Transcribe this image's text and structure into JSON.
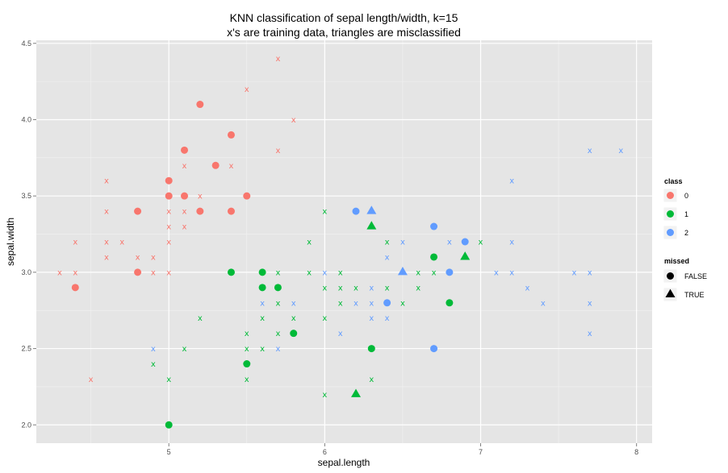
{
  "chart_data": {
    "type": "scatter",
    "title": "KNN classification of sepal length/width, k=15",
    "subtitle": "x's are training data, triangles are misclassified",
    "xlabel": "sepal.length",
    "ylabel": "sepal.width",
    "xlim": [
      4.15,
      8.1
    ],
    "ylim": [
      1.88,
      4.52
    ],
    "xticks": [
      5,
      6,
      7,
      8
    ],
    "yticks": [
      2.0,
      2.5,
      3.0,
      3.5,
      4.0,
      4.5
    ],
    "xtick_labels": [
      "5",
      "6",
      "7",
      "8"
    ],
    "ytick_labels": [
      "2.0",
      "2.5",
      "3.0",
      "3.5",
      "4.0",
      "4.5"
    ],
    "grid": true,
    "legend_position": "right",
    "class_legend": {
      "title": "class",
      "entries": [
        {
          "label": "0",
          "color": "#F8766D"
        },
        {
          "label": "1",
          "color": "#00BA38"
        },
        {
          "label": "2",
          "color": "#619CFF"
        }
      ]
    },
    "missed_legend": {
      "title": "missed",
      "entries": [
        {
          "label": "FALSE",
          "shape": "circle"
        },
        {
          "label": "TRUE",
          "shape": "triangle"
        }
      ]
    },
    "training": [
      {
        "x": 4.3,
        "y": 3.0,
        "class": 0
      },
      {
        "x": 4.4,
        "y": 3.2,
        "class": 0
      },
      {
        "x": 4.4,
        "y": 3.0,
        "class": 0
      },
      {
        "x": 4.5,
        "y": 2.3,
        "class": 0
      },
      {
        "x": 4.6,
        "y": 3.6,
        "class": 0
      },
      {
        "x": 4.6,
        "y": 3.4,
        "class": 0
      },
      {
        "x": 4.6,
        "y": 3.2,
        "class": 0
      },
      {
        "x": 4.6,
        "y": 3.1,
        "class": 0
      },
      {
        "x": 4.7,
        "y": 3.2,
        "class": 0
      },
      {
        "x": 4.8,
        "y": 3.1,
        "class": 0
      },
      {
        "x": 4.9,
        "y": 3.1,
        "class": 0
      },
      {
        "x": 4.9,
        "y": 3.0,
        "class": 0
      },
      {
        "x": 5.0,
        "y": 3.4,
        "class": 0
      },
      {
        "x": 5.0,
        "y": 3.3,
        "class": 0
      },
      {
        "x": 5.0,
        "y": 3.2,
        "class": 0
      },
      {
        "x": 5.0,
        "y": 3.0,
        "class": 0
      },
      {
        "x": 5.1,
        "y": 3.7,
        "class": 0
      },
      {
        "x": 5.1,
        "y": 3.4,
        "class": 0
      },
      {
        "x": 5.1,
        "y": 3.3,
        "class": 0
      },
      {
        "x": 5.2,
        "y": 3.5,
        "class": 0
      },
      {
        "x": 5.4,
        "y": 3.7,
        "class": 0
      },
      {
        "x": 5.5,
        "y": 4.2,
        "class": 0
      },
      {
        "x": 5.7,
        "y": 4.4,
        "class": 0
      },
      {
        "x": 5.7,
        "y": 3.8,
        "class": 0
      },
      {
        "x": 5.8,
        "y": 4.0,
        "class": 0
      },
      {
        "x": 4.9,
        "y": 2.4,
        "class": 1
      },
      {
        "x": 5.0,
        "y": 2.3,
        "class": 1
      },
      {
        "x": 5.1,
        "y": 2.5,
        "class": 1
      },
      {
        "x": 5.2,
        "y": 2.7,
        "class": 1
      },
      {
        "x": 5.5,
        "y": 2.6,
        "class": 1
      },
      {
        "x": 5.5,
        "y": 2.5,
        "class": 1
      },
      {
        "x": 5.5,
        "y": 2.3,
        "class": 1
      },
      {
        "x": 5.6,
        "y": 2.7,
        "class": 1
      },
      {
        "x": 5.6,
        "y": 2.5,
        "class": 1
      },
      {
        "x": 5.7,
        "y": 3.0,
        "class": 1
      },
      {
        "x": 5.7,
        "y": 2.8,
        "class": 1
      },
      {
        "x": 5.7,
        "y": 2.6,
        "class": 1
      },
      {
        "x": 5.8,
        "y": 2.7,
        "class": 1
      },
      {
        "x": 5.9,
        "y": 3.2,
        "class": 1
      },
      {
        "x": 5.9,
        "y": 3.0,
        "class": 1
      },
      {
        "x": 6.0,
        "y": 3.4,
        "class": 1
      },
      {
        "x": 6.0,
        "y": 2.9,
        "class": 1
      },
      {
        "x": 6.0,
        "y": 2.7,
        "class": 1
      },
      {
        "x": 6.0,
        "y": 2.2,
        "class": 1
      },
      {
        "x": 6.1,
        "y": 3.0,
        "class": 1
      },
      {
        "x": 6.1,
        "y": 2.9,
        "class": 1
      },
      {
        "x": 6.1,
        "y": 2.8,
        "class": 1
      },
      {
        "x": 6.2,
        "y": 2.9,
        "class": 1
      },
      {
        "x": 6.3,
        "y": 2.3,
        "class": 1
      },
      {
        "x": 6.4,
        "y": 3.2,
        "class": 1
      },
      {
        "x": 6.4,
        "y": 2.9,
        "class": 1
      },
      {
        "x": 6.5,
        "y": 2.8,
        "class": 1
      },
      {
        "x": 6.6,
        "y": 3.0,
        "class": 1
      },
      {
        "x": 6.6,
        "y": 2.9,
        "class": 1
      },
      {
        "x": 6.7,
        "y": 3.1,
        "class": 1
      },
      {
        "x": 6.7,
        "y": 3.0,
        "class": 1
      },
      {
        "x": 7.0,
        "y": 3.2,
        "class": 1
      },
      {
        "x": 4.9,
        "y": 2.5,
        "class": 2
      },
      {
        "x": 5.6,
        "y": 2.8,
        "class": 2
      },
      {
        "x": 5.7,
        "y": 2.5,
        "class": 2
      },
      {
        "x": 5.8,
        "y": 2.8,
        "class": 2
      },
      {
        "x": 6.0,
        "y": 3.0,
        "class": 2
      },
      {
        "x": 6.1,
        "y": 2.6,
        "class": 2
      },
      {
        "x": 6.2,
        "y": 2.8,
        "class": 2
      },
      {
        "x": 6.3,
        "y": 2.9,
        "class": 2
      },
      {
        "x": 6.3,
        "y": 2.8,
        "class": 2
      },
      {
        "x": 6.3,
        "y": 2.7,
        "class": 2
      },
      {
        "x": 6.4,
        "y": 3.1,
        "class": 2
      },
      {
        "x": 6.4,
        "y": 2.7,
        "class": 2
      },
      {
        "x": 6.5,
        "y": 3.2,
        "class": 2
      },
      {
        "x": 6.8,
        "y": 3.2,
        "class": 2
      },
      {
        "x": 7.1,
        "y": 3.0,
        "class": 2
      },
      {
        "x": 7.2,
        "y": 3.6,
        "class": 2
      },
      {
        "x": 7.2,
        "y": 3.2,
        "class": 2
      },
      {
        "x": 7.2,
        "y": 3.0,
        "class": 2
      },
      {
        "x": 7.3,
        "y": 2.9,
        "class": 2
      },
      {
        "x": 7.4,
        "y": 2.8,
        "class": 2
      },
      {
        "x": 7.6,
        "y": 3.0,
        "class": 2
      },
      {
        "x": 7.7,
        "y": 3.8,
        "class": 2
      },
      {
        "x": 7.7,
        "y": 3.0,
        "class": 2
      },
      {
        "x": 7.7,
        "y": 2.8,
        "class": 2
      },
      {
        "x": 7.7,
        "y": 2.6,
        "class": 2
      },
      {
        "x": 7.9,
        "y": 3.8,
        "class": 2
      }
    ],
    "test": [
      {
        "x": 4.4,
        "y": 2.9,
        "class": 0,
        "missed": false
      },
      {
        "x": 4.8,
        "y": 3.4,
        "class": 0,
        "missed": false
      },
      {
        "x": 4.8,
        "y": 3.0,
        "class": 0,
        "missed": false
      },
      {
        "x": 5.0,
        "y": 3.6,
        "class": 0,
        "missed": false
      },
      {
        "x": 5.0,
        "y": 3.5,
        "class": 0,
        "missed": false
      },
      {
        "x": 5.1,
        "y": 3.8,
        "class": 0,
        "missed": false
      },
      {
        "x": 5.1,
        "y": 3.5,
        "class": 0,
        "missed": false
      },
      {
        "x": 5.2,
        "y": 4.1,
        "class": 0,
        "missed": false
      },
      {
        "x": 5.2,
        "y": 3.4,
        "class": 0,
        "missed": false
      },
      {
        "x": 5.3,
        "y": 3.7,
        "class": 0,
        "missed": false
      },
      {
        "x": 5.4,
        "y": 3.9,
        "class": 0,
        "missed": false
      },
      {
        "x": 5.4,
        "y": 3.4,
        "class": 0,
        "missed": false
      },
      {
        "x": 5.5,
        "y": 3.5,
        "class": 0,
        "missed": false
      },
      {
        "x": 5.0,
        "y": 2.0,
        "class": 1,
        "missed": false
      },
      {
        "x": 5.4,
        "y": 3.0,
        "class": 1,
        "missed": false
      },
      {
        "x": 5.5,
        "y": 2.4,
        "class": 1,
        "missed": false
      },
      {
        "x": 5.6,
        "y": 3.0,
        "class": 1,
        "missed": false
      },
      {
        "x": 5.6,
        "y": 2.9,
        "class": 1,
        "missed": false
      },
      {
        "x": 5.7,
        "y": 2.9,
        "class": 1,
        "missed": false
      },
      {
        "x": 5.8,
        "y": 2.6,
        "class": 1,
        "missed": false
      },
      {
        "x": 6.3,
        "y": 2.5,
        "class": 1,
        "missed": false
      },
      {
        "x": 6.8,
        "y": 2.8,
        "class": 1,
        "missed": false
      },
      {
        "x": 6.7,
        "y": 3.1,
        "class": 1,
        "missed": false
      },
      {
        "x": 6.2,
        "y": 2.2,
        "class": 1,
        "missed": true
      },
      {
        "x": 6.3,
        "y": 3.3,
        "class": 1,
        "missed": true
      },
      {
        "x": 6.9,
        "y": 3.1,
        "class": 1,
        "missed": true
      },
      {
        "x": 6.2,
        "y": 3.4,
        "class": 2,
        "missed": false
      },
      {
        "x": 6.4,
        "y": 2.8,
        "class": 2,
        "missed": false
      },
      {
        "x": 6.7,
        "y": 3.3,
        "class": 2,
        "missed": false
      },
      {
        "x": 6.7,
        "y": 2.5,
        "class": 2,
        "missed": false
      },
      {
        "x": 6.8,
        "y": 3.0,
        "class": 2,
        "missed": false
      },
      {
        "x": 6.9,
        "y": 3.2,
        "class": 2,
        "missed": false
      },
      {
        "x": 6.3,
        "y": 3.4,
        "class": 2,
        "missed": true
      },
      {
        "x": 6.5,
        "y": 3.0,
        "class": 2,
        "missed": true
      }
    ]
  }
}
